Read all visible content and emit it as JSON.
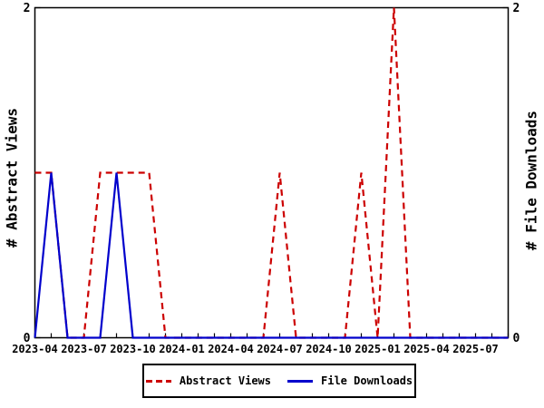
{
  "chart_data": {
    "type": "line",
    "x": [
      "2023-04",
      "2023-05",
      "2023-06",
      "2023-07",
      "2023-08",
      "2023-09",
      "2023-10",
      "2023-11",
      "2023-12",
      "2024-01",
      "2024-02",
      "2024-03",
      "2024-04",
      "2024-05",
      "2024-06",
      "2024-07",
      "2024-08",
      "2024-09",
      "2024-10",
      "2024-11",
      "2024-12",
      "2025-01",
      "2025-02",
      "2025-03",
      "2025-04",
      "2025-05",
      "2025-06",
      "2025-07",
      "2025-08",
      "2025-09"
    ],
    "series": [
      {
        "name": "Abstract Views",
        "color": "#cc0000",
        "style": "dashed",
        "axis": "left",
        "values": [
          1,
          1,
          0,
          0,
          1,
          1,
          1,
          1,
          0,
          0,
          0,
          0,
          0,
          0,
          0,
          1,
          0,
          0,
          0,
          0,
          1,
          0,
          2,
          0,
          0,
          0,
          0,
          0,
          0,
          0
        ]
      },
      {
        "name": "File Downloads",
        "color": "#0000cc",
        "style": "solid",
        "axis": "right",
        "values": [
          0,
          1,
          0,
          0,
          0,
          1,
          0,
          0,
          0,
          0,
          0,
          0,
          0,
          0,
          0,
          0,
          0,
          0,
          0,
          0,
          0,
          0,
          0,
          0,
          0,
          0,
          0,
          0,
          0,
          0
        ]
      }
    ],
    "ylabel_left": "# Abstract Views",
    "ylabel_right": "# File Downloads",
    "ylim": [
      0,
      2
    ],
    "yticks": [
      0,
      2
    ],
    "x_tick_labels": [
      "2023-04",
      "2023-07",
      "2023-10",
      "2024-01",
      "2024-04",
      "2024-07",
      "2024-10",
      "2025-01",
      "2025-04",
      "2025-07"
    ],
    "x_tick_label_every": 3,
    "frame_color": "#000000",
    "grid": false,
    "legend_position": "bottom-center"
  }
}
